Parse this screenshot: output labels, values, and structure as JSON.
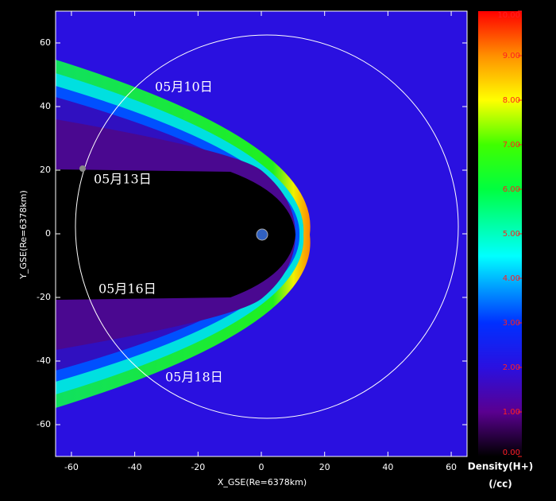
{
  "chart_data": {
    "type": "density-map",
    "xlabel": "X_GSE(Re=6378km)",
    "ylabel": "Y_GSE(Re=6378km)",
    "xlim": [
      -65,
      65
    ],
    "ylim": [
      -70,
      70
    ],
    "xticks": [
      -60,
      -40,
      -20,
      0,
      20,
      40,
      60
    ],
    "yticks": [
      -60,
      -40,
      -20,
      0,
      20,
      40,
      60
    ],
    "annotations": [
      "05月10日",
      "05月13日",
      "05月16日",
      "05月18日"
    ],
    "colorbar": {
      "label": "Density(H+)",
      "unit": "(/cc)",
      "lim": [
        0,
        10
      ],
      "ticks": [
        {
          "value": 0,
          "label": "0.00"
        },
        {
          "value": 1,
          "label": "1.00"
        },
        {
          "value": 2,
          "label": "2.00"
        },
        {
          "value": 3,
          "label": "3.00"
        },
        {
          "value": 4,
          "label": "4.00"
        },
        {
          "value": 5,
          "label": "5.00"
        },
        {
          "value": 6,
          "label": "6.00"
        },
        {
          "value": 7,
          "label": "7.00"
        },
        {
          "value": 8,
          "label": "8.00"
        },
        {
          "value": 9,
          "label": "9.00"
        },
        {
          "value": 10,
          "label": "10.00"
        }
      ]
    }
  }
}
